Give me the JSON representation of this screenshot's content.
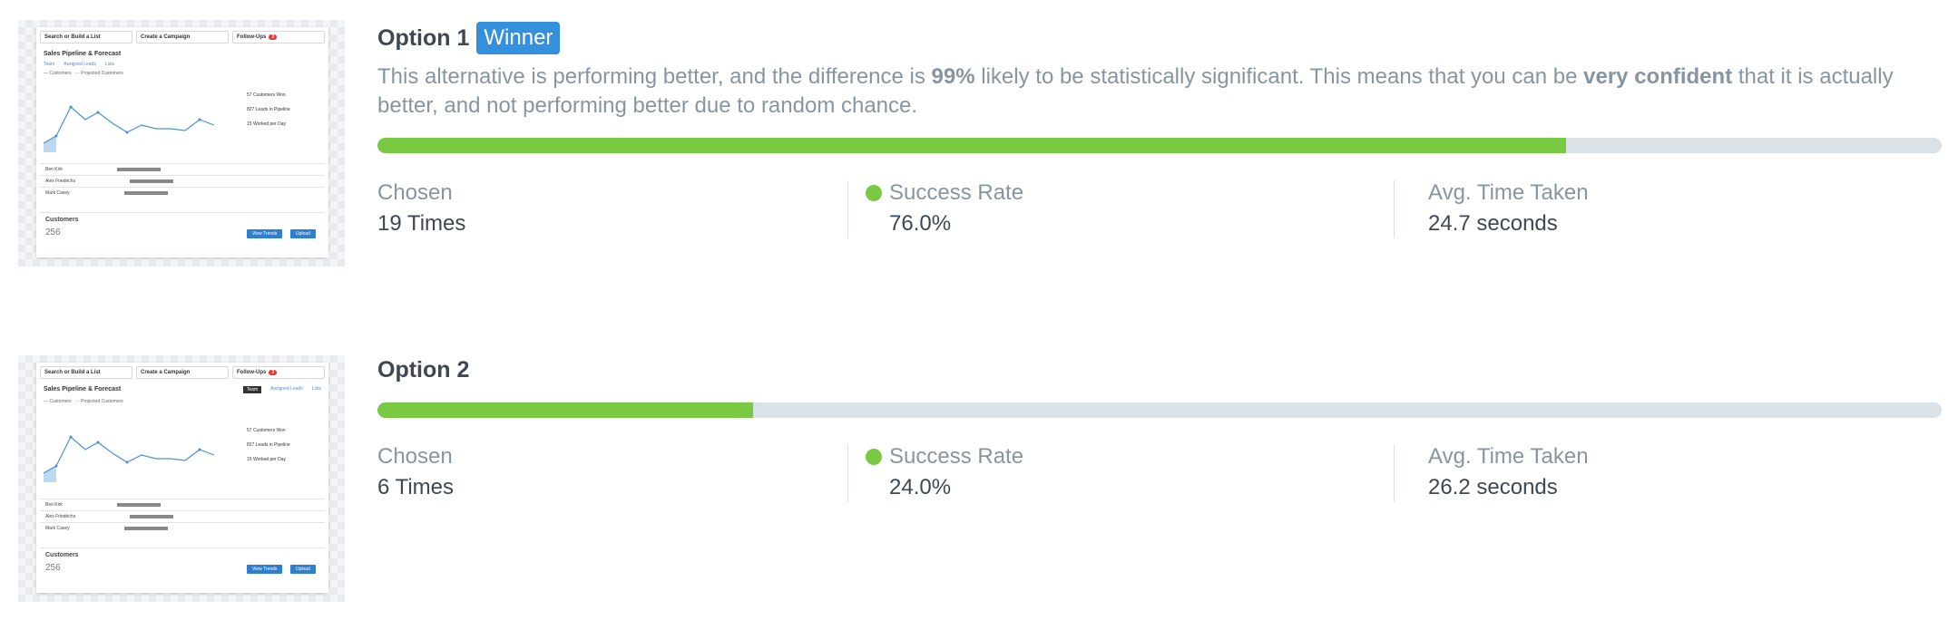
{
  "mock": {
    "search_label": "Search or Build a List",
    "campaign_label": "Create a Campaign",
    "followups_label": "Follow-Ups",
    "pipeline_title": "Sales Pipeline & Forecast",
    "customers_label": "Customers",
    "customers_count": "256",
    "view_trends": "View Trends",
    "upload": "Upload",
    "rows": [
      "Ben Kirk",
      "Alex Friedrichs",
      "Mark Casey"
    ]
  },
  "options": [
    {
      "name": "Option 1",
      "badge": "Winner",
      "description_parts": [
        "This alternative is performing better, and the difference is ",
        "99%",
        " likely to be statistically significant. This means that you can be ",
        "very confident",
        " that it is actually better, and not performing better due to random chance."
      ],
      "progress_percent": 76.0,
      "chosen_label": "Chosen",
      "chosen_value": "19 Times",
      "success_label": "Success Rate",
      "success_value": "76.0%",
      "time_label": "Avg. Time Taken",
      "time_value": "24.7 seconds"
    },
    {
      "name": "Option 2",
      "progress_percent": 24.0,
      "chosen_label": "Chosen",
      "chosen_value": "6 Times",
      "success_label": "Success Rate",
      "success_value": "24.0%",
      "time_label": "Avg. Time Taken",
      "time_value": "26.2 seconds"
    }
  ],
  "colors": {
    "accent": "#3490dc",
    "success": "#7ac943",
    "track": "#dae1e7",
    "muted_text": "#8795a1",
    "dark_text": "#3d4852"
  }
}
